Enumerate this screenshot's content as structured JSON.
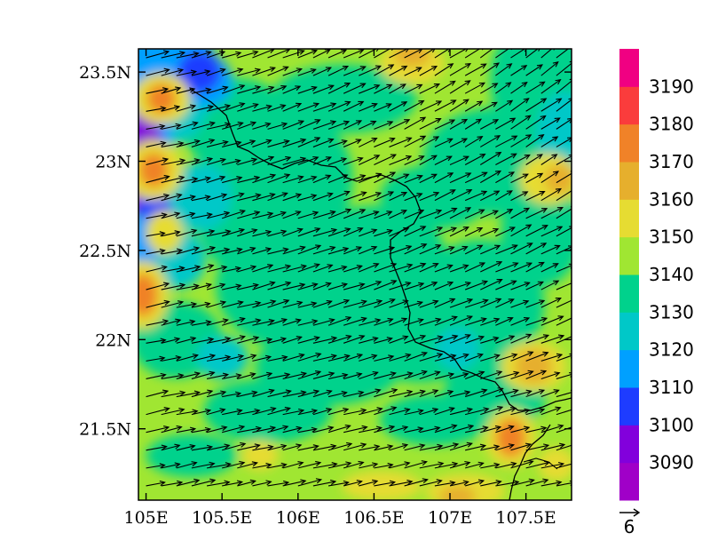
{
  "map": {
    "lon_range": [
      104.95,
      107.8
    ],
    "lat_range": [
      21.1,
      23.63
    ],
    "lon_ticks": [
      105,
      105.5,
      106,
      106.5,
      107,
      107.5
    ],
    "lon_tick_labels": [
      "105E",
      "105.5E",
      "106E",
      "106.5E",
      "107E",
      "107.5E"
    ],
    "lat_ticks": [
      21.5,
      22,
      22.5,
      23,
      23.5
    ],
    "lat_tick_labels": [
      "21.5N",
      "22N",
      "22.5N",
      "23N",
      "23.5N"
    ],
    "field": "geopotential height contours (filled) with wind vectors",
    "wind_direction": "west-southwesterly",
    "border_line_color": "#000000"
  },
  "colorbar": {
    "levels": [
      "3090",
      "3100",
      "3110",
      "3120",
      "3130",
      "3140",
      "3150",
      "3160",
      "3170",
      "3180",
      "3190"
    ],
    "colors": [
      "#a000c8",
      "#8200dc",
      "#1e3cff",
      "#00a0ff",
      "#00c8c8",
      "#00d28c",
      "#a0e632",
      "#e6dc32",
      "#e6af2d",
      "#f08228",
      "#fa3c3c",
      "#f00082"
    ]
  },
  "reference_vector": {
    "label": "6"
  }
}
